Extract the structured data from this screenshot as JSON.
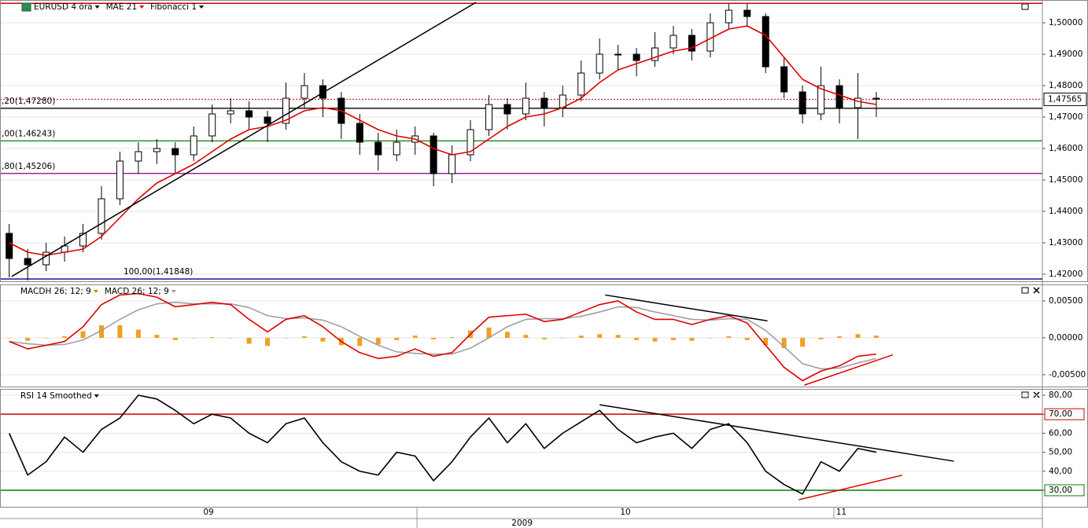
{
  "chart_data": [
    {
      "type": "candlestick",
      "title": "EURUSD 4 óra",
      "xlim": [
        -0.5,
        56
      ],
      "ylim": [
        1.41775,
        1.50725
      ],
      "yticks": [
        {
          "value": 1.42,
          "label": "1,42000"
        },
        {
          "value": 1.43,
          "label": "1,43000"
        },
        {
          "value": 1.44,
          "label": "1,44000"
        },
        {
          "value": 1.45,
          "label": "1,45000"
        },
        {
          "value": 1.46,
          "label": "1,46000"
        },
        {
          "value": 1.47,
          "label": "1,47000"
        },
        {
          "value": 1.48,
          "label": "1,48000"
        },
        {
          "value": 1.49,
          "label": "1,49000"
        },
        {
          "value": 1.5,
          "label": "1,50000"
        }
      ],
      "grid": true,
      "up_color": "#ffffff",
      "down_color": "#000000",
      "open": [
        1.433,
        1.425,
        1.423,
        1.427,
        1.429,
        1.433,
        1.444,
        1.456,
        1.459,
        1.46,
        1.458,
        1.464,
        1.471,
        1.472,
        1.47,
        1.468,
        1.476,
        1.48,
        1.476,
        1.468,
        1.462,
        1.458,
        1.462,
        1.464,
        1.452,
        1.458,
        1.466,
        1.474,
        1.471,
        1.476,
        1.473,
        1.477,
        1.484,
        1.49,
        1.49,
        1.488,
        1.492,
        1.496,
        1.491,
        1.5,
        1.504,
        1.502,
        1.486,
        1.478,
        1.471,
        1.48,
        1.473,
        1.476
      ],
      "high": [
        1.436,
        1.428,
        1.43,
        1.432,
        1.436,
        1.448,
        1.459,
        1.462,
        1.463,
        1.462,
        1.467,
        1.474,
        1.476,
        1.475,
        1.472,
        1.481,
        1.484,
        1.482,
        1.478,
        1.471,
        1.465,
        1.466,
        1.467,
        1.465,
        1.461,
        1.469,
        1.477,
        1.476,
        1.481,
        1.478,
        1.48,
        1.488,
        1.495,
        1.493,
        1.492,
        1.497,
        1.499,
        1.498,
        1.503,
        1.506,
        1.506,
        1.503,
        1.489,
        1.48,
        1.486,
        1.482,
        1.484,
        1.478
      ],
      "low": [
        1.419,
        1.418,
        1.421,
        1.424,
        1.427,
        1.431,
        1.442,
        1.452,
        1.455,
        1.452,
        1.456,
        1.462,
        1.468,
        1.466,
        1.462,
        1.466,
        1.473,
        1.47,
        1.463,
        1.458,
        1.453,
        1.456,
        1.458,
        1.448,
        1.449,
        1.456,
        1.464,
        1.466,
        1.469,
        1.467,
        1.47,
        1.475,
        1.482,
        1.485,
        1.483,
        1.486,
        1.49,
        1.488,
        1.489,
        1.498,
        1.499,
        1.484,
        1.476,
        1.468,
        1.469,
        1.468,
        1.463,
        1.47
      ],
      "close": [
        1.425,
        1.423,
        1.427,
        1.429,
        1.433,
        1.444,
        1.456,
        1.459,
        1.46,
        1.458,
        1.464,
        1.471,
        1.472,
        1.47,
        1.468,
        1.476,
        1.48,
        1.476,
        1.468,
        1.462,
        1.458,
        1.462,
        1.464,
        1.452,
        1.458,
        1.466,
        1.474,
        1.471,
        1.476,
        1.473,
        1.477,
        1.484,
        1.49,
        1.49,
        1.488,
        1.492,
        1.496,
        1.491,
        1.5,
        1.504,
        1.502,
        1.486,
        1.478,
        1.471,
        1.48,
        1.473,
        1.476,
        1.4757
      ],
      "series": [
        {
          "name": "MAE 21",
          "color": "#e00000",
          "values": [
            1.43,
            1.427,
            1.426,
            1.427,
            1.428,
            1.432,
            1.438,
            1.444,
            1.449,
            1.452,
            1.455,
            1.459,
            1.463,
            1.466,
            1.467,
            1.469,
            1.472,
            1.473,
            1.472,
            1.469,
            1.466,
            1.464,
            1.463,
            1.46,
            1.458,
            1.459,
            1.463,
            1.467,
            1.47,
            1.471,
            1.473,
            1.476,
            1.481,
            1.485,
            1.487,
            1.489,
            1.491,
            1.492,
            1.495,
            1.498,
            1.499,
            1.496,
            1.489,
            1.482,
            1.479,
            1.477,
            1.475,
            1.474
          ]
        }
      ],
      "fibonacci": {
        "name": "Fibonacci 1",
        "levels": [
          {
            "value": 1.4728,
            "label": ",20(1,47280)",
            "color": "#000000"
          },
          {
            "value": 1.46243,
            "label": ",00(1,46243)",
            "color": "#008000"
          },
          {
            "value": 1.45206,
            "label": ",80(1,45206)",
            "color": "#800080"
          },
          {
            "value": 1.41848,
            "label": "100,00(1,41848)",
            "color": "#00008b"
          }
        ]
      },
      "lines": [
        {
          "value": 1.5062,
          "color": "#d00000"
        }
      ],
      "current_price": {
        "value": 1.47565,
        "label": "1,47565",
        "color": "#d00000"
      },
      "trendlines": [
        {
          "x": [
            0.14,
            25.3
          ],
          "y": [
            1.4193,
            1.5065
          ],
          "color": "#000000"
        }
      ]
    },
    {
      "type": "macd",
      "xlim": [
        -0.5,
        56
      ],
      "ylim": [
        -0.0066,
        0.00723
      ],
      "yticks": [
        {
          "value": 0.005,
          "label": "0,00500"
        },
        {
          "value": 0,
          "label": "0,00000"
        },
        {
          "value": -0.005,
          "label": "-0,00500"
        }
      ],
      "grid": true,
      "series": [
        {
          "name": "MACDH 26; 12; 9",
          "color": "#f0a020",
          "kind": "histogram",
          "values": [
            0,
            -0.0004,
            0,
            0.0002,
            0.0009,
            0.0017,
            0.0017,
            0.0011,
            0.0004,
            -0.0003,
            0,
            0.0001,
            0,
            -0.0008,
            -0.0011,
            0,
            0.0002,
            -0.0005,
            -0.001,
            -0.0011,
            -0.0009,
            -0.0003,
            0.0003,
            -0.0002,
            0.0001,
            0.001,
            0.0014,
            0.0008,
            0.0004,
            -0.0002,
            0,
            0.0003,
            0.0005,
            0.0004,
            -0.0003,
            -0.0005,
            -0.0003,
            -0.0004,
            0,
            0.0002,
            -0.0003,
            -0.001,
            -0.0014,
            -0.0012,
            -0.0002,
            0.0002,
            0.0005,
            0.0003
          ]
        },
        {
          "name": "MACD 26; 12; 9",
          "color": "#a0a0a0",
          "values": [
            -0.0005,
            -0.0008,
            -0.001,
            -0.0009,
            -0.0003,
            0.001,
            0.0025,
            0.0038,
            0.0046,
            0.0048,
            0.0046,
            0.0046,
            0.0046,
            0.0041,
            0.003,
            0.0026,
            0.0027,
            0.0024,
            0.0015,
            0.0002,
            -0.001,
            -0.0019,
            -0.0021,
            -0.0022,
            -0.0022,
            -0.0014,
            0,
            0.0015,
            0.0025,
            0.0026,
            0.0026,
            0.0029,
            0.0035,
            0.0042,
            0.0041,
            0.0035,
            0.003,
            0.0025,
            0.0024,
            0.0026,
            0.0025,
            0.001,
            -0.0012,
            -0.0035,
            -0.0042,
            -0.0041,
            -0.0034,
            -0.0028
          ]
        },
        {
          "color": "#e00000",
          "values": [
            -0.0005,
            -0.0015,
            -0.001,
            -0.0005,
            0.0015,
            0.0045,
            0.0058,
            0.006,
            0.0055,
            0.0042,
            0.0045,
            0.0048,
            0.0045,
            0.0025,
            0.0008,
            0.0025,
            0.003,
            0.0015,
            -0.0005,
            -0.002,
            -0.0028,
            -0.0025,
            -0.0015,
            -0.0025,
            -0.002,
            0.0005,
            0.0028,
            0.003,
            0.0032,
            0.0022,
            0.0025,
            0.0035,
            0.0045,
            0.005,
            0.0035,
            0.0025,
            0.0025,
            0.0018,
            0.0025,
            0.003,
            0.002,
            -0.001,
            -0.004,
            -0.0058,
            -0.0045,
            -0.0038,
            -0.0025,
            -0.0022
          ]
        }
      ],
      "trendlines": [
        {
          "x": [
            32.3,
            41.1
          ],
          "y": [
            0.0058,
            0.0023
          ],
          "color": "#000000"
        },
        {
          "x": [
            43.1,
            47.9
          ],
          "y": [
            -0.0064,
            -0.0023
          ],
          "color": "#e00000"
        }
      ]
    },
    {
      "type": "line",
      "xlim": [
        -0.5,
        56
      ],
      "ylim": [
        21.3,
        83.3
      ],
      "yticks": [
        {
          "value": 80,
          "label": "80,00"
        },
        {
          "value": 70,
          "label": "70,00"
        },
        {
          "value": 60,
          "label": "60,00"
        },
        {
          "value": 50,
          "label": "50,00"
        },
        {
          "value": 40,
          "label": "40,00"
        },
        {
          "value": 30,
          "label": "30,00"
        }
      ],
      "grid": true,
      "levels": [
        {
          "value": 70,
          "color": "#d00000"
        },
        {
          "value": 30,
          "color": "#008000"
        }
      ],
      "series": [
        {
          "name": "RSI 14 Smoothed",
          "color": "#000000",
          "values": [
            60,
            38,
            45,
            58,
            50,
            62,
            68,
            80,
            78,
            72,
            65,
            70,
            68,
            60,
            55,
            65,
            68,
            55,
            45,
            40,
            38,
            50,
            48,
            35,
            45,
            58,
            68,
            55,
            65,
            52,
            60,
            66,
            72,
            62,
            55,
            58,
            60,
            52,
            62,
            65,
            55,
            40,
            33,
            28,
            45,
            40,
            52,
            50
          ]
        }
      ],
      "trendlines": [
        {
          "x": [
            32.0,
            51.2
          ],
          "y": [
            75.0,
            45.3
          ],
          "color": "#000000"
        },
        {
          "x": [
            42.8,
            48.4
          ],
          "y": [
            25.0,
            37.9
          ],
          "color": "#e00000"
        }
      ],
      "xticks": [
        {
          "value": 10.8,
          "label": "09"
        },
        {
          "value": 33.4,
          "label": "10"
        },
        {
          "value": 45.1,
          "label": "11"
        }
      ],
      "year_label": {
        "value": 27.8,
        "label": "2009"
      }
    }
  ]
}
